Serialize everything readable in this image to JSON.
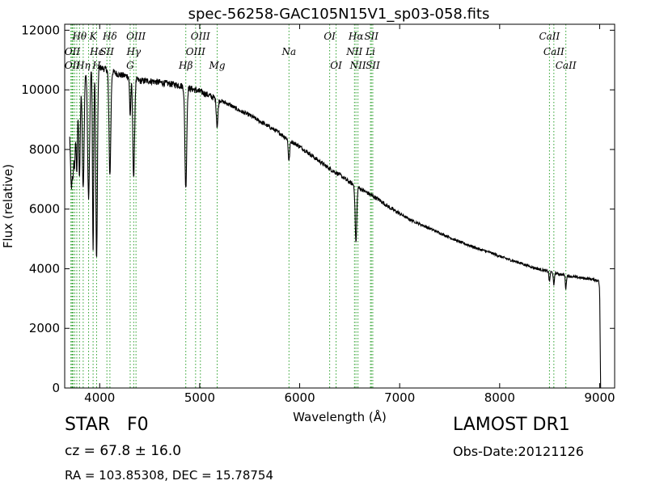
{
  "chart_data": {
    "type": "line",
    "title": "spec-56258-GAC105N15V1_sp03-058.fits",
    "xlabel": "Wavelength (Å)",
    "ylabel": "Flux (relative)",
    "xlim": [
      3650,
      9150
    ],
    "ylim": [
      0,
      12200
    ],
    "xticks": [
      4000,
      5000,
      6000,
      7000,
      8000,
      9000
    ],
    "yticks": [
      0,
      2000,
      4000,
      6000,
      8000,
      10000,
      12000
    ],
    "grid": false,
    "line_color": "#000000",
    "marker_color": "#2ca02c",
    "spectrum": {
      "continuum": [
        [
          3700,
          8600
        ],
        [
          3750,
          9900
        ],
        [
          3800,
          10350
        ],
        [
          3850,
          10650
        ],
        [
          3900,
          10750
        ],
        [
          3950,
          10800
        ],
        [
          4000,
          10750
        ],
        [
          4100,
          10650
        ],
        [
          4200,
          10500
        ],
        [
          4300,
          10450
        ],
        [
          4400,
          10300
        ],
        [
          4500,
          10300
        ],
        [
          4600,
          10250
        ],
        [
          4700,
          10200
        ],
        [
          4800,
          10150
        ],
        [
          4900,
          10050
        ],
        [
          5000,
          9950
        ],
        [
          5100,
          9800
        ],
        [
          5200,
          9650
        ],
        [
          5300,
          9500
        ],
        [
          5400,
          9300
        ],
        [
          5500,
          9150
        ],
        [
          5600,
          8950
        ],
        [
          5700,
          8750
        ],
        [
          5800,
          8550
        ],
        [
          5900,
          8300
        ],
        [
          6000,
          8100
        ],
        [
          6100,
          7850
        ],
        [
          6200,
          7600
        ],
        [
          6300,
          7350
        ],
        [
          6400,
          7150
        ],
        [
          6500,
          6900
        ],
        [
          6600,
          6700
        ],
        [
          6700,
          6500
        ],
        [
          6800,
          6300
        ],
        [
          6900,
          6050
        ],
        [
          7000,
          5850
        ],
        [
          7100,
          5650
        ],
        [
          7200,
          5500
        ],
        [
          7300,
          5350
        ],
        [
          7400,
          5200
        ],
        [
          7500,
          5050
        ],
        [
          7600,
          4900
        ],
        [
          7700,
          4780
        ],
        [
          7800,
          4650
        ],
        [
          7900,
          4550
        ],
        [
          8000,
          4420
        ],
        [
          8100,
          4300
        ],
        [
          8200,
          4200
        ],
        [
          8300,
          4080
        ],
        [
          8400,
          3980
        ],
        [
          8500,
          3900
        ],
        [
          8600,
          3820
        ],
        [
          8700,
          3750
        ],
        [
          8800,
          3700
        ],
        [
          8900,
          3660
        ],
        [
          8990,
          3600
        ],
        [
          9000,
          3300
        ],
        [
          9010,
          0
        ]
      ],
      "absorption": [
        {
          "center": 3712,
          "depth": 1500,
          "width": 6
        },
        {
          "center": 3722,
          "depth": 1700,
          "width": 6
        },
        {
          "center": 3734,
          "depth": 2000,
          "width": 6
        },
        {
          "center": 3750,
          "depth": 2400,
          "width": 7
        },
        {
          "center": 3771,
          "depth": 2800,
          "width": 7
        },
        {
          "center": 3798,
          "depth": 3200,
          "width": 8
        },
        {
          "center": 3835,
          "depth": 3900,
          "width": 9
        },
        {
          "center": 3889,
          "depth": 4300,
          "width": 10
        },
        {
          "center": 3934,
          "depth": 6200,
          "width": 6
        },
        {
          "center": 3969,
          "depth": 6500,
          "width": 8
        },
        {
          "center": 4102,
          "depth": 3500,
          "width": 9
        },
        {
          "center": 4305,
          "depth": 1300,
          "width": 6
        },
        {
          "center": 4340,
          "depth": 3300,
          "width": 9
        },
        {
          "center": 4861,
          "depth": 3400,
          "width": 9
        },
        {
          "center": 5175,
          "depth": 900,
          "width": 8
        },
        {
          "center": 5893,
          "depth": 700,
          "width": 7
        },
        {
          "center": 6563,
          "depth": 1900,
          "width": 8
        },
        {
          "center": 8498,
          "depth": 350,
          "width": 5
        },
        {
          "center": 8542,
          "depth": 450,
          "width": 5
        },
        {
          "center": 8662,
          "depth": 450,
          "width": 5
        }
      ]
    },
    "line_markers": [
      {
        "label": "Hθ",
        "wavelength": 3798,
        "row": 1
      },
      {
        "label": "K",
        "wavelength": 3934,
        "row": 1
      },
      {
        "label": "Hδ",
        "wavelength": 4102,
        "row": 1
      },
      {
        "label": "OIII",
        "wavelength": 4363,
        "row": 1
      },
      {
        "label": "OIII",
        "wavelength": 5007,
        "row": 1
      },
      {
        "label": "OI",
        "wavelength": 6300,
        "row": 1
      },
      {
        "label": "Hα",
        "wavelength": 6563,
        "row": 1
      },
      {
        "label": "SII",
        "wavelength": 6717,
        "row": 1
      },
      {
        "label": "CaII",
        "wavelength": 8498,
        "row": 1
      },
      {
        "label": "OII",
        "wavelength": 3727,
        "row": 2
      },
      {
        "label": "Hε",
        "wavelength": 3970,
        "row": 2
      },
      {
        "label": "SII",
        "wavelength": 4072,
        "row": 2
      },
      {
        "label": "Hγ",
        "wavelength": 4340,
        "row": 2
      },
      {
        "label": "OIII",
        "wavelength": 4959,
        "row": 2
      },
      {
        "label": "Na",
        "wavelength": 5893,
        "row": 2
      },
      {
        "label": "NII",
        "wavelength": 6548,
        "row": 2
      },
      {
        "label": "Li",
        "wavelength": 6708,
        "row": 2
      },
      {
        "label": "CaII",
        "wavelength": 8542,
        "row": 2
      },
      {
        "label": "OII",
        "wavelength": 3727,
        "row": 3
      },
      {
        "label": "Hη",
        "wavelength": 3835,
        "row": 3
      },
      {
        "label": "H",
        "wavelength": 3969,
        "row": 3
      },
      {
        "label": "G",
        "wavelength": 4305,
        "row": 3
      },
      {
        "label": "Hβ",
        "wavelength": 4861,
        "row": 3
      },
      {
        "label": "Mg",
        "wavelength": 5175,
        "row": 3
      },
      {
        "label": "OI",
        "wavelength": 6364,
        "row": 3
      },
      {
        "label": "NII",
        "wavelength": 6583,
        "row": 3
      },
      {
        "label": "SII",
        "wavelength": 6731,
        "row": 3
      },
      {
        "label": "CaII",
        "wavelength": 8662,
        "row": 3
      }
    ],
    "marker_lines": [
      3712,
      3722,
      3727,
      3734,
      3750,
      3771,
      3798,
      3835,
      3889,
      3934,
      3969,
      4072,
      4102,
      4305,
      4340,
      4363,
      4861,
      4959,
      5007,
      5175,
      5893,
      6300,
      6364,
      6548,
      6563,
      6583,
      6708,
      6717,
      6731,
      8498,
      8542,
      8662
    ]
  },
  "info": {
    "object_type": "STAR",
    "subclass": "F0",
    "cz": "cz = 67.8 ± 16.0",
    "radec": "RA = 103.85308, DEC = 15.78754",
    "release": "LAMOST DR1",
    "obs_date": "Obs-Date:20121126"
  }
}
